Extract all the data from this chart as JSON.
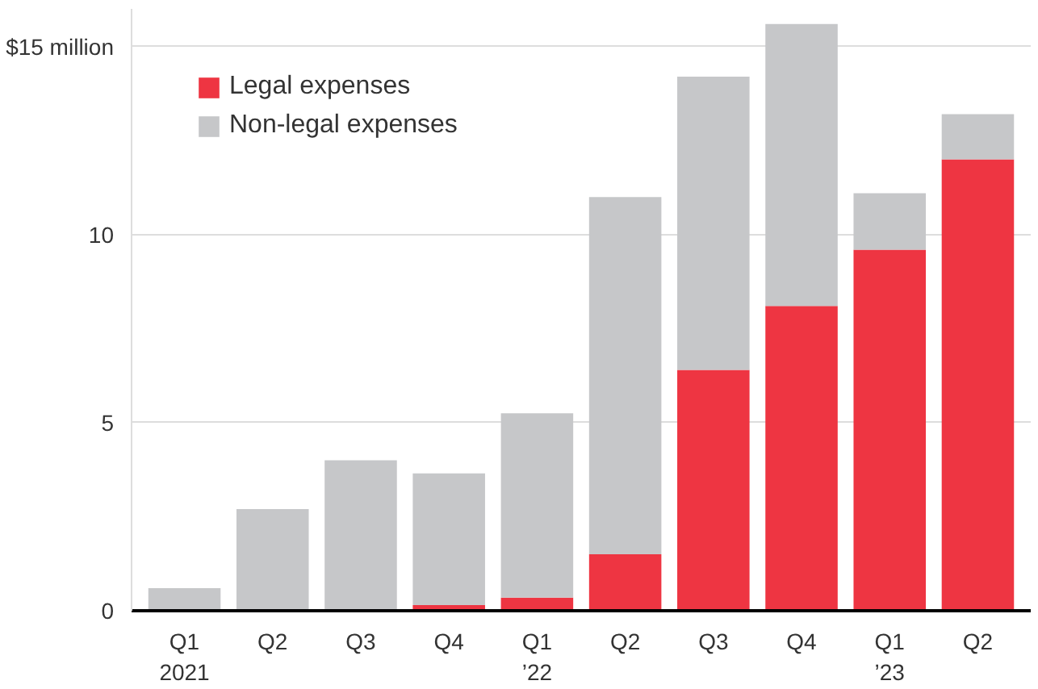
{
  "chart_data": {
    "type": "bar",
    "stacked": true,
    "categories": [
      "Q1\n2021",
      "Q2",
      "Q3",
      "Q4",
      "Q1\n’22",
      "Q2",
      "Q3",
      "Q4",
      "Q1\n’23",
      "Q2"
    ],
    "series": [
      {
        "name": "Legal expenses",
        "color": "#ee3542",
        "values": [
          0,
          0,
          0,
          0.15,
          0.35,
          1.5,
          6.4,
          8.1,
          9.6,
          12.0
        ]
      },
      {
        "name": "Non-legal expenses",
        "color": "#c6c7c9",
        "values": [
          0.6,
          2.7,
          4.0,
          3.5,
          4.9,
          9.5,
          7.8,
          7.5,
          1.5,
          1.2
        ]
      }
    ],
    "ylim": [
      0,
      16
    ],
    "yticks": [
      0,
      5,
      10,
      {
        "value": 15,
        "label": "$15 million"
      }
    ],
    "grid": "y",
    "legend": "top left"
  }
}
